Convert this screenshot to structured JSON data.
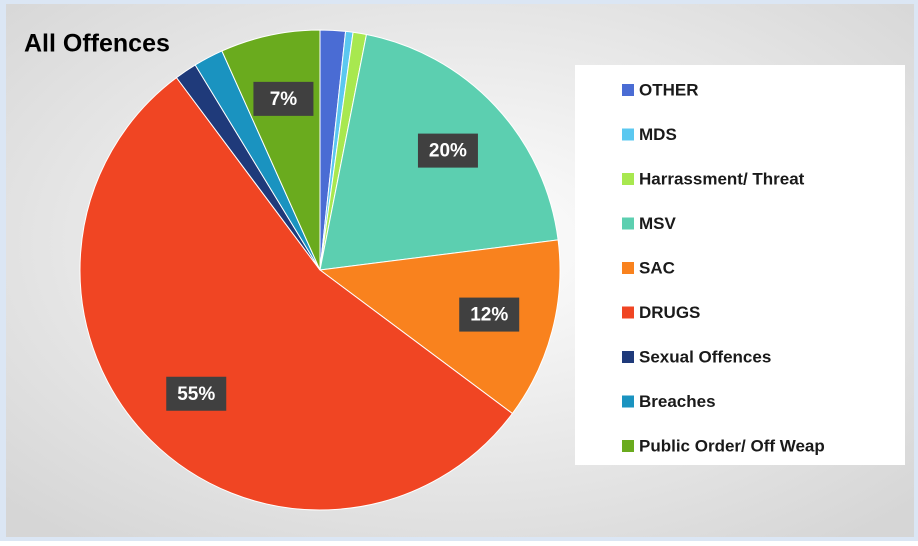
{
  "chart_data": {
    "type": "pie",
    "title": "All Offences",
    "categories": [
      "OTHER",
      "MDS",
      "Harrassment/ Threat",
      "MSV",
      "SAC",
      "DRUGS",
      "Sexual Offences",
      "Breaches",
      "Public Order/ Off Weap"
    ],
    "values": [
      1.7,
      0.5,
      0.9,
      19.9,
      12.2,
      54.6,
      1.5,
      2.0,
      6.7
    ],
    "value_labels": [
      null,
      null,
      null,
      "20%",
      "12%",
      "55%",
      null,
      null,
      "7%"
    ],
    "colors": [
      "#4a6cd4",
      "#5bc8f0",
      "#a8e84f",
      "#5ccfb0",
      "#f9821e",
      "#f04523",
      "#1f3a7a",
      "#1a93c0",
      "#6aab1e"
    ],
    "legend": "right"
  }
}
